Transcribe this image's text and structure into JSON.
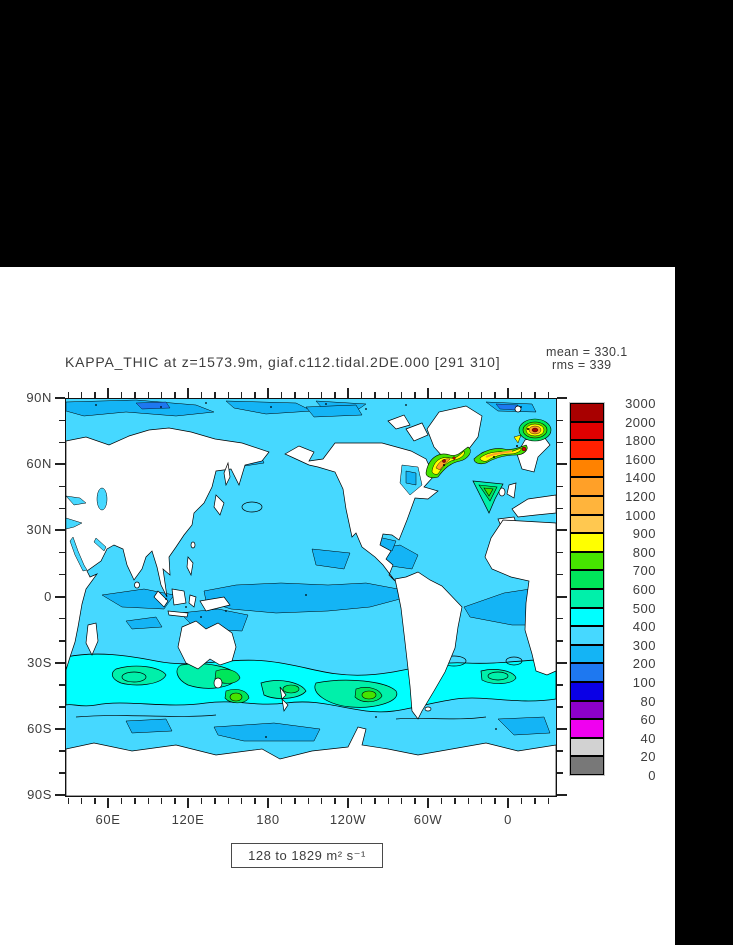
{
  "plot": {
    "title": "KAPPA_THIC at z=1573.9m, giaf.c112.tidal.2DE.000 [291 310]",
    "mean_line": "mean = 330.1",
    "rms_line": "rms = 339",
    "caption": "128 to 1829 m² s⁻¹"
  },
  "legend": {
    "labels": [
      "3000",
      "2000",
      "1800",
      "1600",
      "1400",
      "1200",
      "1000",
      "900",
      "800",
      "700",
      "600",
      "500",
      "400",
      "300",
      "200",
      "100",
      "80",
      "60",
      "40",
      "20",
      "0"
    ],
    "colors": [
      "#a80000",
      "#e00000",
      "#ff2000",
      "#ff8200",
      "#ffa028",
      "#ffb43c",
      "#ffc850",
      "#ffff00",
      "#46e400",
      "#00e65a",
      "#00f0aa",
      "#00ffff",
      "#46d8ff",
      "#14b4f5",
      "#1e78f0",
      "#0a00e6",
      "#8c00c8",
      "#f000f0",
      "#d2d2d2",
      "#787878"
    ]
  },
  "x_axis": {
    "ticks": [
      {
        "label": "60E",
        "value": 60
      },
      {
        "label": "120E",
        "value": 120
      },
      {
        "label": "180",
        "value": 180
      },
      {
        "label": "120W",
        "value": 240
      },
      {
        "label": "60W",
        "value": 300
      },
      {
        "label": "0",
        "value": 360
      }
    ],
    "minor_step": 10,
    "domain": [
      27.75,
      395.25
    ]
  },
  "y_axis": {
    "ticks": [
      {
        "label": "90N",
        "value": 90
      },
      {
        "label": "60N",
        "value": 60
      },
      {
        "label": "30N",
        "value": 30
      },
      {
        "label": "0",
        "value": 0
      },
      {
        "label": "30S",
        "value": -30
      },
      {
        "label": "60S",
        "value": -60
      },
      {
        "label": "90S",
        "value": -90
      }
    ],
    "minor_step": 10,
    "domain": [
      -90,
      90
    ]
  },
  "chart_data": {
    "type": "heatmap",
    "subtype": "filled-contour-world-map",
    "title": "KAPPA_THIC at z=1573.9m, giaf.c112.tidal.2DE.000 [291 310]",
    "variable": "KAPPA_THIC",
    "depth_level": "z=1573.9m",
    "dataset": "giaf.c112.tidal.2DE.000",
    "time_window": "[291 310]",
    "units": "m² s⁻¹",
    "stats": {
      "mean": 330.1,
      "rms": 339
    },
    "data_range": {
      "min": 128,
      "max": 1829
    },
    "contour_levels": [
      0,
      20,
      40,
      60,
      80,
      100,
      200,
      300,
      400,
      500,
      600,
      700,
      800,
      900,
      1000,
      1200,
      1400,
      1600,
      1800,
      2000,
      3000
    ],
    "palette_high_to_low": [
      "#a80000",
      "#e00000",
      "#ff2000",
      "#ff8200",
      "#ffa028",
      "#ffb43c",
      "#ffc850",
      "#ffff00",
      "#46e400",
      "#00e65a",
      "#00f0aa",
      "#00ffff",
      "#46d8ff",
      "#14b4f5",
      "#1e78f0",
      "#0a00e6",
      "#8c00c8",
      "#f000f0",
      "#d2d2d2",
      "#787878"
    ],
    "x_tick_labels": [
      "60E",
      "120E",
      "180",
      "120W",
      "60W",
      "0"
    ],
    "y_tick_labels": [
      "90N",
      "60N",
      "30N",
      "0",
      "30S",
      "60S",
      "90S"
    ],
    "legend_position": "right",
    "grid": false,
    "features": [
      "Background open ocean mostly in 300-400 bin (light cyan)",
      "Equatorial Pacific, tropical Atlantic, Caribbean, Indian-ocean patches and Arctic patches in 200-300 bin (blue)",
      "Southern Ocean circumpolar band ~30S-55S elevated to 400-700 with green cores (600-800) near Tasmania/New Zealand and the Falkland Plateau",
      "North Atlantic subpolar hotspots (Denmark Strait, Iceland-Scotland ridge, Norwegian Sea) reach 800-2000+ with orange/red bullseyes, max 1829",
      "Land masked white with black coastline contours"
    ]
  }
}
